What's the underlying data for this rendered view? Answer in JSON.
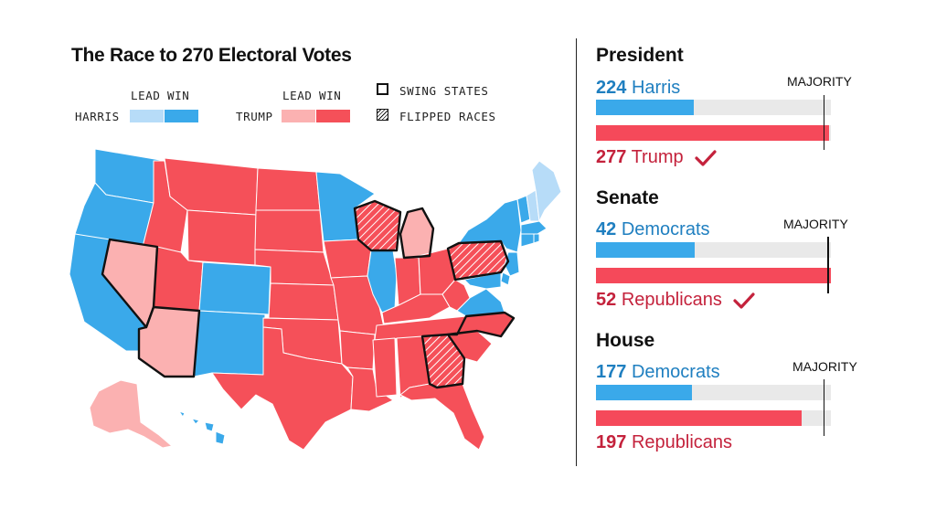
{
  "title": "The Race to 270 Electoral Votes",
  "legend": {
    "lead_label": "LEAD",
    "win_label": "WIN",
    "harris_label": "HARRIS",
    "trump_label": "TRUMP",
    "swing_label": "SWING STATES",
    "flipped_label": "FLIPPED RACES"
  },
  "colors": {
    "harris_win": "#3aa9ea",
    "harris_lead": "#b7dcf8",
    "trump_win": "#f55059",
    "trump_lead": "#fbb1b1",
    "bar_blue": "#3aa9ea",
    "bar_red": "#f5495a",
    "text_blue": "#1f7fc0",
    "text_red": "#c4223c"
  },
  "map_states": {
    "harris_win": [
      "WA",
      "OR",
      "CA",
      "CO",
      "NM",
      "MN",
      "IL",
      "VA",
      "NY",
      "VT",
      "MA",
      "CT",
      "RI",
      "NJ",
      "DE",
      "MD",
      "HI"
    ],
    "harris_lead": [
      "NH",
      "ME"
    ],
    "trump_win": [
      "ID",
      "MT",
      "WY",
      "UT",
      "ND",
      "SD",
      "NE",
      "KS",
      "OK",
      "TX",
      "IA",
      "MO",
      "AR",
      "LA",
      "IN",
      "OH",
      "KY",
      "TN",
      "MS",
      "AL",
      "FL",
      "SC",
      "WV"
    ],
    "trump_lead": [
      "NV",
      "AZ",
      "MI",
      "AK"
    ],
    "swing_states": [
      "NV",
      "AZ",
      "WI",
      "MI",
      "PA",
      "NC",
      "GA"
    ],
    "flipped_races": [
      "WI",
      "PA",
      "GA"
    ]
  },
  "president": {
    "title": "President",
    "dem_num": "224",
    "dem_name": "Harris",
    "rep_num": "277",
    "rep_name": "Trump",
    "majority_label": "MAJORITY",
    "winner": "rep",
    "dem_value": 224,
    "rep_value": 277,
    "total": 538,
    "majority": 270
  },
  "senate": {
    "title": "Senate",
    "dem_num": "42",
    "dem_name": "Democrats",
    "rep_num": "52",
    "rep_name": "Republicans",
    "majority_label": "MAJORITY",
    "winner": "rep",
    "dem_value": 42,
    "rep_value": 52,
    "total": 100,
    "majority": 51
  },
  "house": {
    "title": "House",
    "dem_num": "177",
    "dem_name": "Democrats",
    "rep_num": "197",
    "rep_name": "Republicans",
    "majority_label": "MAJORITY",
    "winner": "none",
    "dem_value": 177,
    "rep_value": 197,
    "total": 435,
    "majority": 218
  }
}
